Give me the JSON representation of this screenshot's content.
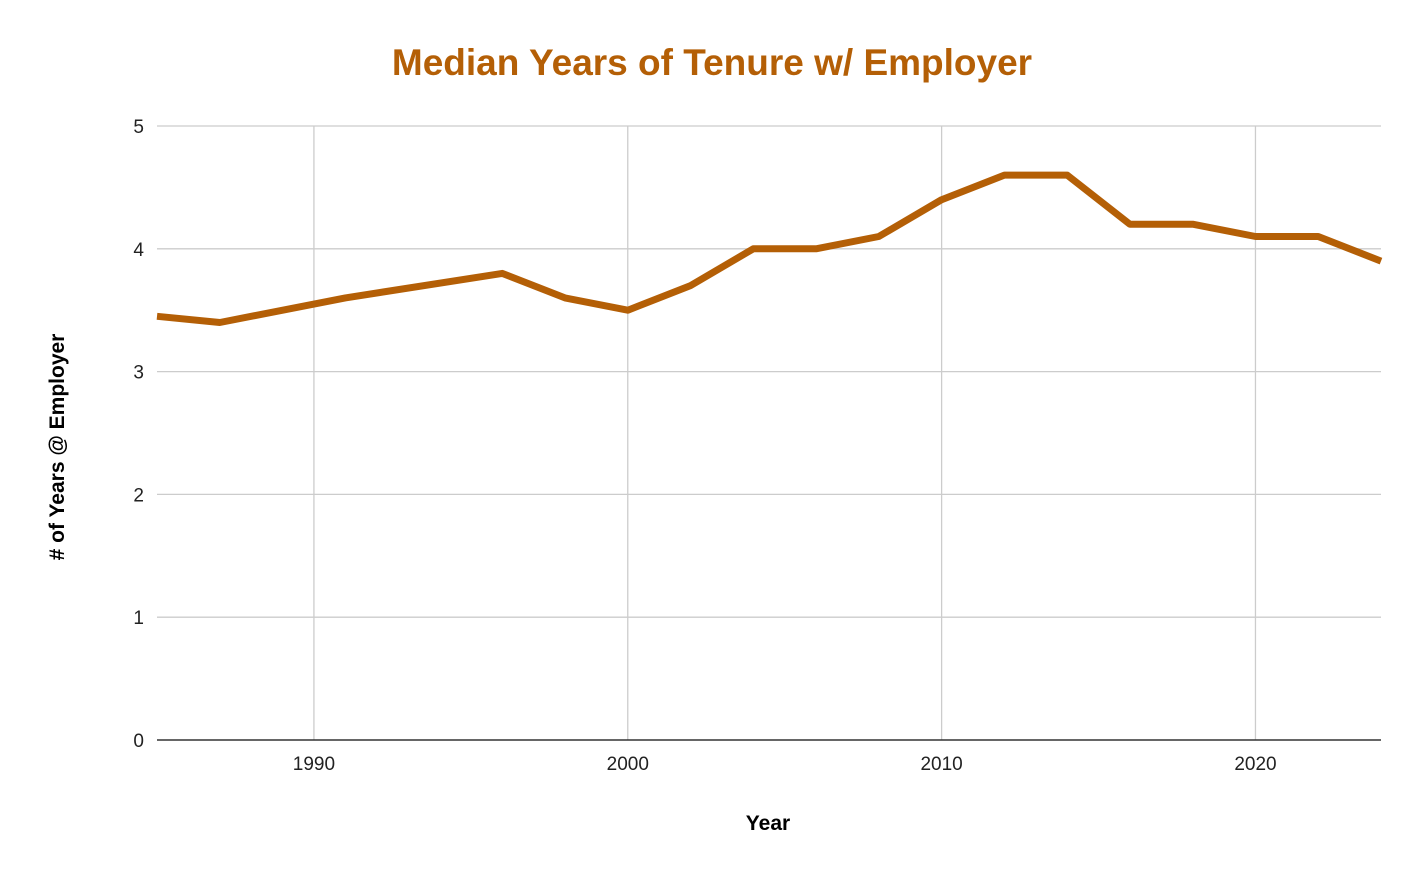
{
  "chart_data": {
    "type": "line",
    "title": "Median Years of Tenure w/ Employer",
    "xlabel": "Year",
    "ylabel": "# of Years @ Employer",
    "xlim": [
      1985,
      2024
    ],
    "ylim": [
      0,
      5
    ],
    "x_ticks": [
      1990,
      2000,
      2010,
      2020
    ],
    "y_ticks": [
      0,
      1,
      2,
      3,
      4,
      5
    ],
    "grid": true,
    "legend": "none",
    "series": [
      {
        "x": [
          1985,
          1987,
          1991,
          1996,
          1998,
          2000,
          2002,
          2004,
          2006,
          2008,
          2010,
          2012,
          2014,
          2016,
          2018,
          2020,
          2022,
          2024
        ],
        "values": [
          3.45,
          3.4,
          3.6,
          3.8,
          3.6,
          3.5,
          3.7,
          4.0,
          4.0,
          4.1,
          4.4,
          4.6,
          4.6,
          4.2,
          4.2,
          4.1,
          4.1,
          3.9
        ]
      }
    ],
    "colors": {
      "title": "#B45F06",
      "line": "#B45F06",
      "grid": "#CCCCCC",
      "axis": "#333333"
    }
  }
}
